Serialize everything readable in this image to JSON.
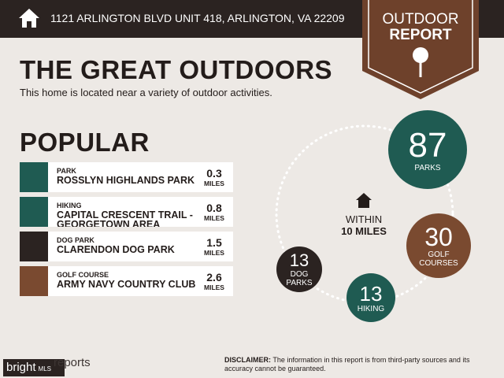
{
  "header": {
    "address": "1121 ARLINGTON BLVD UNIT 418, ARLINGTON, VA 22209"
  },
  "badge": {
    "line1": "OUTDOOR",
    "line2": "REPORT"
  },
  "title": "THE GREAT OUTDOORS",
  "subtitle": "This home is located near a variety of outdoor activities.",
  "popular": {
    "heading": "POPULAR",
    "items": [
      {
        "category": "PARK",
        "name": "ROSSLYN HIGHLANDS PARK",
        "distance": 0.3,
        "unit": "MILES"
      },
      {
        "category": "HIKING",
        "name": "CAPITAL CRESCENT TRAIL - GEORGETOWN AREA",
        "distance": 0.8,
        "unit": "MILES"
      },
      {
        "category": "DOG PARK",
        "name": "CLARENDON DOG PARK",
        "distance": 1.5,
        "unit": "MILES"
      },
      {
        "category": "GOLF COURSE",
        "name": "ARMY NAVY COUNTRY CLUB",
        "distance": 2.6,
        "unit": "MILES"
      }
    ]
  },
  "radius": {
    "line1": "WITHIN",
    "line2": "10 MILES"
  },
  "counts": [
    {
      "value": 87,
      "label": "PARKS"
    },
    {
      "value": 30,
      "label": "GOLF COURSES"
    },
    {
      "value": 13,
      "label": "HIKING"
    },
    {
      "value": 13,
      "label": "DOG PARKS"
    }
  ],
  "footer": {
    "logo": "bright",
    "logo_suffix": "MLS",
    "brand": "reports",
    "disclaimer_label": "DISCLAIMER:",
    "disclaimer": "The information in this report is from third-party sources and its accuracy cannot be guaranteed."
  }
}
